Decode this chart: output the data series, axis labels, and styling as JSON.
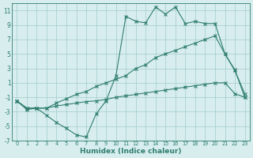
{
  "xlabel": "Humidex (Indice chaleur)",
  "x": [
    0,
    1,
    2,
    3,
    4,
    5,
    6,
    7,
    8,
    9,
    10,
    11,
    12,
    13,
    14,
    15,
    16,
    17,
    18,
    19,
    20,
    21,
    22,
    23
  ],
  "line1": [
    -1.5,
    -2.7,
    -2.5,
    -3.5,
    -4.5,
    -5.3,
    -6.2,
    -6.5,
    -3.3,
    -1.5,
    2.0,
    10.2,
    9.5,
    9.3,
    11.5,
    10.5,
    11.5,
    9.2,
    9.5,
    9.2,
    9.2,
    5.0,
    2.8,
    -1.0
  ],
  "line2": [
    -1.5,
    -2.5,
    -2.5,
    -2.5,
    -1.8,
    -1.2,
    -0.6,
    -0.2,
    0.5,
    1.0,
    1.5,
    2.0,
    3.0,
    3.5,
    4.5,
    5.0,
    5.5,
    6.0,
    6.5,
    7.0,
    7.5,
    5.0,
    2.7,
    -0.5
  ],
  "line3": [
    -1.5,
    -2.5,
    -2.5,
    -2.5,
    -2.2,
    -2.0,
    -1.8,
    -1.6,
    -1.5,
    -1.3,
    -1.0,
    -0.8,
    -0.6,
    -0.4,
    -0.2,
    0.0,
    0.2,
    0.4,
    0.6,
    0.8,
    1.0,
    1.0,
    -0.5,
    -1.0
  ],
  "line_color": "#2e7d6e",
  "bg_color": "#d8eeee",
  "grid_color": "#aacfcf",
  "ylim": [
    -7,
    12
  ],
  "xlim": [
    -0.5,
    23.5
  ],
  "yticks": [
    -7,
    -5,
    -3,
    -1,
    1,
    3,
    5,
    7,
    9,
    11
  ],
  "xticks": [
    0,
    1,
    2,
    3,
    4,
    5,
    6,
    7,
    8,
    9,
    10,
    11,
    12,
    13,
    14,
    15,
    16,
    17,
    18,
    19,
    20,
    21,
    22,
    23
  ]
}
